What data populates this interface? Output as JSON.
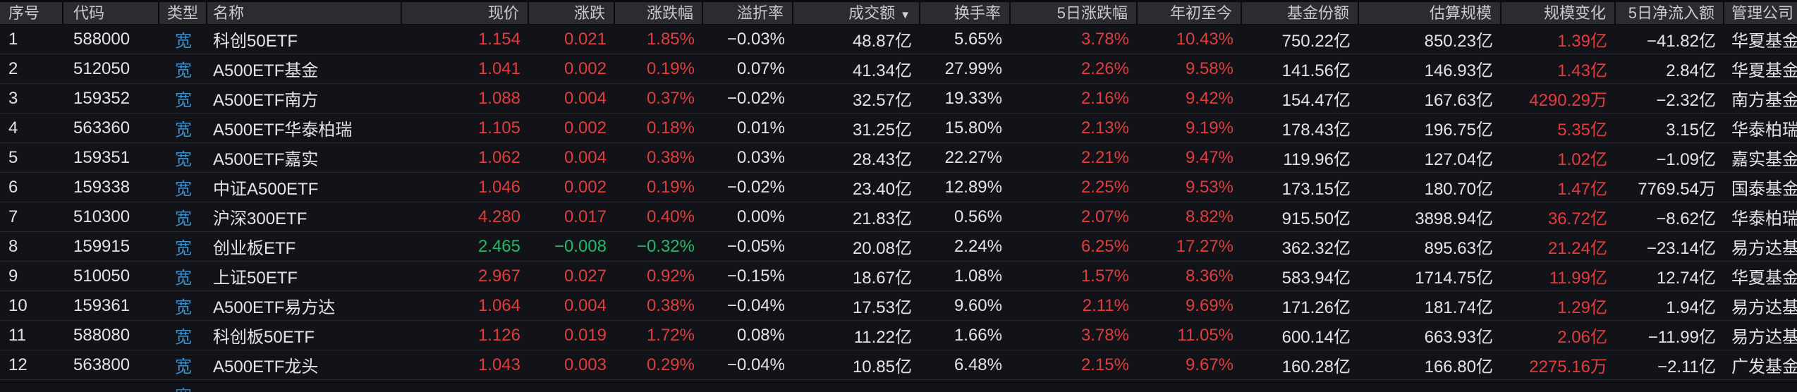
{
  "colors": {
    "page_bg": "#0a0b0d",
    "header_bg": "#2b2c31",
    "row_bg": "#121318",
    "separator": "#26272c",
    "text": "#e3e4e7",
    "header_text": "#c9cacd",
    "up_red": "#e23c3d",
    "down_green": "#22b967",
    "type_badge_blue": "#3e8ec9"
  },
  "table": {
    "columns": [
      {
        "key": "seq",
        "label": "序号"
      },
      {
        "key": "code",
        "label": "代码"
      },
      {
        "key": "type",
        "label": "类型"
      },
      {
        "key": "name",
        "label": "名称"
      },
      {
        "key": "price",
        "label": "现价"
      },
      {
        "key": "change",
        "label": "涨跌"
      },
      {
        "key": "change_pct",
        "label": "涨跌幅"
      },
      {
        "key": "premium_rate",
        "label": "溢折率"
      },
      {
        "key": "turnover",
        "label": "成交额",
        "sort_icon": "▼"
      },
      {
        "key": "turnover_rate",
        "label": "换手率"
      },
      {
        "key": "chg_5d",
        "label": "5日涨跌幅"
      },
      {
        "key": "ytd",
        "label": "年初至今"
      },
      {
        "key": "fund_shares",
        "label": "基金份额"
      },
      {
        "key": "est_scale",
        "label": "估算规模"
      },
      {
        "key": "scale_change",
        "label": "规模变化"
      },
      {
        "key": "net_inflow_5d",
        "label": "5日净流入额"
      },
      {
        "key": "manager",
        "label": "管理公司"
      }
    ],
    "rows": [
      {
        "cells": [
          {
            "v": "1"
          },
          {
            "v": "588000"
          },
          {
            "v": "宽",
            "c": "badge"
          },
          {
            "v": "科创50ETF"
          },
          {
            "v": "1.154",
            "c": "up"
          },
          {
            "v": "0.021",
            "c": "up"
          },
          {
            "v": "1.85%",
            "c": "up"
          },
          {
            "v": "−0.03%"
          },
          {
            "v": "48.87亿"
          },
          {
            "v": "5.65%"
          },
          {
            "v": "3.78%",
            "c": "up"
          },
          {
            "v": "10.43%",
            "c": "up"
          },
          {
            "v": "750.22亿"
          },
          {
            "v": "850.23亿"
          },
          {
            "v": "1.39亿",
            "c": "up"
          },
          {
            "v": "−41.82亿"
          },
          {
            "v": "华夏基金"
          }
        ]
      },
      {
        "cells": [
          {
            "v": "2"
          },
          {
            "v": "512050"
          },
          {
            "v": "宽",
            "c": "badge"
          },
          {
            "v": "A500ETF基金"
          },
          {
            "v": "1.041",
            "c": "up"
          },
          {
            "v": "0.002",
            "c": "up"
          },
          {
            "v": "0.19%",
            "c": "up"
          },
          {
            "v": "0.07%"
          },
          {
            "v": "41.34亿"
          },
          {
            "v": "27.99%"
          },
          {
            "v": "2.26%",
            "c": "up"
          },
          {
            "v": "9.58%",
            "c": "up"
          },
          {
            "v": "141.56亿"
          },
          {
            "v": "146.93亿"
          },
          {
            "v": "1.43亿",
            "c": "up"
          },
          {
            "v": "2.84亿"
          },
          {
            "v": "华夏基金"
          }
        ]
      },
      {
        "cells": [
          {
            "v": "3"
          },
          {
            "v": "159352"
          },
          {
            "v": "宽",
            "c": "badge"
          },
          {
            "v": "A500ETF南方"
          },
          {
            "v": "1.088",
            "c": "up"
          },
          {
            "v": "0.004",
            "c": "up"
          },
          {
            "v": "0.37%",
            "c": "up"
          },
          {
            "v": "−0.02%"
          },
          {
            "v": "32.57亿"
          },
          {
            "v": "19.33%"
          },
          {
            "v": "2.16%",
            "c": "up"
          },
          {
            "v": "9.42%",
            "c": "up"
          },
          {
            "v": "154.47亿"
          },
          {
            "v": "167.63亿"
          },
          {
            "v": "4290.29万",
            "c": "up"
          },
          {
            "v": "−2.32亿"
          },
          {
            "v": "南方基金"
          }
        ]
      },
      {
        "cells": [
          {
            "v": "4"
          },
          {
            "v": "563360"
          },
          {
            "v": "宽",
            "c": "badge"
          },
          {
            "v": "A500ETF华泰柏瑞"
          },
          {
            "v": "1.105",
            "c": "up"
          },
          {
            "v": "0.002",
            "c": "up"
          },
          {
            "v": "0.18%",
            "c": "up"
          },
          {
            "v": "0.01%"
          },
          {
            "v": "31.25亿"
          },
          {
            "v": "15.80%"
          },
          {
            "v": "2.13%",
            "c": "up"
          },
          {
            "v": "9.19%",
            "c": "up"
          },
          {
            "v": "178.43亿"
          },
          {
            "v": "196.75亿"
          },
          {
            "v": "5.35亿",
            "c": "up"
          },
          {
            "v": "3.15亿"
          },
          {
            "v": "华泰柏瑞基金"
          }
        ]
      },
      {
        "cells": [
          {
            "v": "5"
          },
          {
            "v": "159351"
          },
          {
            "v": "宽",
            "c": "badge"
          },
          {
            "v": "A500ETF嘉实"
          },
          {
            "v": "1.062",
            "c": "up"
          },
          {
            "v": "0.004",
            "c": "up"
          },
          {
            "v": "0.38%",
            "c": "up"
          },
          {
            "v": "0.03%"
          },
          {
            "v": "28.43亿"
          },
          {
            "v": "22.27%"
          },
          {
            "v": "2.21%",
            "c": "up"
          },
          {
            "v": "9.47%",
            "c": "up"
          },
          {
            "v": "119.96亿"
          },
          {
            "v": "127.04亿"
          },
          {
            "v": "1.02亿",
            "c": "up"
          },
          {
            "v": "−1.09亿"
          },
          {
            "v": "嘉实基金"
          }
        ]
      },
      {
        "cells": [
          {
            "v": "6"
          },
          {
            "v": "159338"
          },
          {
            "v": "宽",
            "c": "badge"
          },
          {
            "v": "中证A500ETF"
          },
          {
            "v": "1.046",
            "c": "up"
          },
          {
            "v": "0.002",
            "c": "up"
          },
          {
            "v": "0.19%",
            "c": "up"
          },
          {
            "v": "−0.02%"
          },
          {
            "v": "23.40亿"
          },
          {
            "v": "12.89%"
          },
          {
            "v": "2.25%",
            "c": "up"
          },
          {
            "v": "9.53%",
            "c": "up"
          },
          {
            "v": "173.15亿"
          },
          {
            "v": "180.70亿"
          },
          {
            "v": "1.47亿",
            "c": "up"
          },
          {
            "v": "7769.54万"
          },
          {
            "v": "国泰基金"
          }
        ]
      },
      {
        "cells": [
          {
            "v": "7"
          },
          {
            "v": "510300"
          },
          {
            "v": "宽",
            "c": "badge"
          },
          {
            "v": "沪深300ETF"
          },
          {
            "v": "4.280",
            "c": "up"
          },
          {
            "v": "0.017",
            "c": "up"
          },
          {
            "v": "0.40%",
            "c": "up"
          },
          {
            "v": "0.00%"
          },
          {
            "v": "21.83亿"
          },
          {
            "v": "0.56%"
          },
          {
            "v": "2.07%",
            "c": "up"
          },
          {
            "v": "8.82%",
            "c": "up"
          },
          {
            "v": "915.50亿"
          },
          {
            "v": "3898.94亿"
          },
          {
            "v": "36.72亿",
            "c": "up"
          },
          {
            "v": "−8.62亿"
          },
          {
            "v": "华泰柏瑞基金"
          }
        ]
      },
      {
        "cells": [
          {
            "v": "8"
          },
          {
            "v": "159915"
          },
          {
            "v": "宽",
            "c": "badge"
          },
          {
            "v": "创业板ETF"
          },
          {
            "v": "2.465",
            "c": "down"
          },
          {
            "v": "−0.008",
            "c": "down"
          },
          {
            "v": "−0.32%",
            "c": "down"
          },
          {
            "v": "−0.05%"
          },
          {
            "v": "20.08亿"
          },
          {
            "v": "2.24%"
          },
          {
            "v": "6.25%",
            "c": "up"
          },
          {
            "v": "17.27%",
            "c": "up"
          },
          {
            "v": "362.32亿"
          },
          {
            "v": "895.63亿"
          },
          {
            "v": "21.24亿",
            "c": "up"
          },
          {
            "v": "−23.14亿"
          },
          {
            "v": "易方达基金"
          }
        ]
      },
      {
        "cells": [
          {
            "v": "9"
          },
          {
            "v": "510050"
          },
          {
            "v": "宽",
            "c": "badge"
          },
          {
            "v": "上证50ETF"
          },
          {
            "v": "2.967",
            "c": "up"
          },
          {
            "v": "0.027",
            "c": "up"
          },
          {
            "v": "0.92%",
            "c": "up"
          },
          {
            "v": "−0.15%"
          },
          {
            "v": "18.67亿"
          },
          {
            "v": "1.08%"
          },
          {
            "v": "1.57%",
            "c": "up"
          },
          {
            "v": "8.36%",
            "c": "up"
          },
          {
            "v": "583.94亿"
          },
          {
            "v": "1714.75亿"
          },
          {
            "v": "11.99亿",
            "c": "up"
          },
          {
            "v": "12.74亿"
          },
          {
            "v": "华夏基金"
          }
        ]
      },
      {
        "cells": [
          {
            "v": "10"
          },
          {
            "v": "159361"
          },
          {
            "v": "宽",
            "c": "badge"
          },
          {
            "v": "A500ETF易方达"
          },
          {
            "v": "1.064",
            "c": "up"
          },
          {
            "v": "0.004",
            "c": "up"
          },
          {
            "v": "0.38%",
            "c": "up"
          },
          {
            "v": "−0.04%"
          },
          {
            "v": "17.53亿"
          },
          {
            "v": "9.60%"
          },
          {
            "v": "2.11%",
            "c": "up"
          },
          {
            "v": "9.69%",
            "c": "up"
          },
          {
            "v": "171.26亿"
          },
          {
            "v": "181.74亿"
          },
          {
            "v": "1.29亿",
            "c": "up"
          },
          {
            "v": "1.94亿"
          },
          {
            "v": "易方达基金"
          }
        ]
      },
      {
        "cells": [
          {
            "v": "11"
          },
          {
            "v": "588080"
          },
          {
            "v": "宽",
            "c": "badge"
          },
          {
            "v": "科创板50ETF"
          },
          {
            "v": "1.126",
            "c": "up"
          },
          {
            "v": "0.019",
            "c": "up"
          },
          {
            "v": "1.72%",
            "c": "up"
          },
          {
            "v": "0.08%"
          },
          {
            "v": "11.22亿"
          },
          {
            "v": "1.66%"
          },
          {
            "v": "3.78%",
            "c": "up"
          },
          {
            "v": "11.05%",
            "c": "up"
          },
          {
            "v": "600.14亿"
          },
          {
            "v": "663.93亿"
          },
          {
            "v": "2.06亿",
            "c": "up"
          },
          {
            "v": "−11.99亿"
          },
          {
            "v": "易方达基金"
          }
        ]
      },
      {
        "cells": [
          {
            "v": "12"
          },
          {
            "v": "563800"
          },
          {
            "v": "宽",
            "c": "badge"
          },
          {
            "v": "A500ETF龙头"
          },
          {
            "v": "1.043",
            "c": "up"
          },
          {
            "v": "0.003",
            "c": "up"
          },
          {
            "v": "0.29%",
            "c": "up"
          },
          {
            "v": "−0.04%"
          },
          {
            "v": "10.85亿"
          },
          {
            "v": "6.48%"
          },
          {
            "v": "2.15%",
            "c": "up"
          },
          {
            "v": "9.67%",
            "c": "up"
          },
          {
            "v": "160.28亿"
          },
          {
            "v": "166.80亿"
          },
          {
            "v": "2275.16万",
            "c": "up"
          },
          {
            "v": "−2.11亿"
          },
          {
            "v": "广发基金"
          }
        ]
      }
    ],
    "partial_row": {
      "type_badge": "宽"
    }
  }
}
